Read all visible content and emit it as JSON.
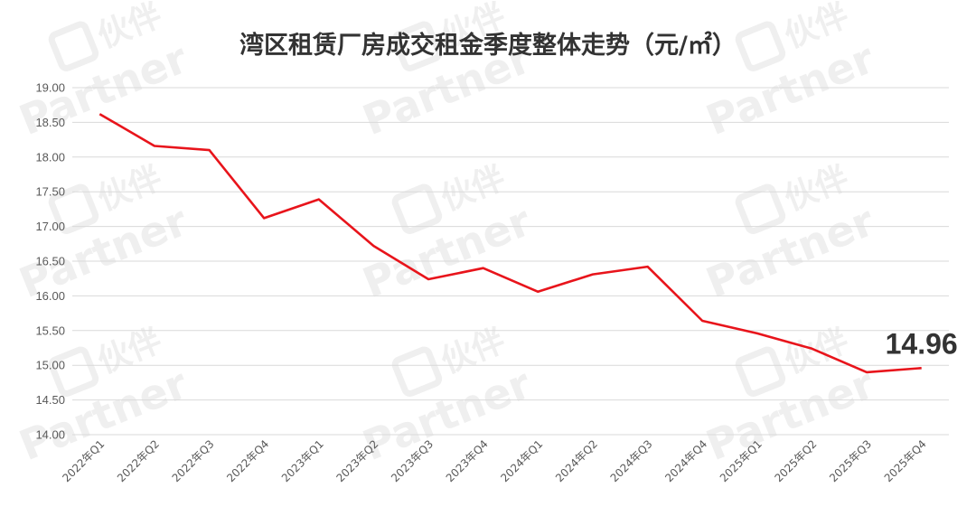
{
  "chart_data": {
    "type": "line",
    "title": "湾区租赁厂房成交租金季度整体走势（元/㎡）",
    "xlabel": "",
    "ylabel": "",
    "categories": [
      "2022年Q1",
      "2022年Q2",
      "2022年Q3",
      "2022年Q4",
      "2023年Q1",
      "2023年Q2",
      "2023年Q3",
      "2023年Q4",
      "2024年Q1",
      "2024年Q2",
      "2024年Q3",
      "2024年Q4",
      "2025年Q1",
      "2025年Q2",
      "2025年Q3",
      "2025年Q4"
    ],
    "series": [
      {
        "values": [
          18.62,
          18.16,
          18.1,
          17.12,
          17.39,
          16.72,
          16.24,
          16.4,
          16.06,
          16.31,
          16.42,
          15.64,
          15.46,
          15.24,
          14.9,
          14.96
        ],
        "color": "#e8141b"
      }
    ],
    "ylim": [
      14.0,
      19.0
    ],
    "yticks": [
      "14.00",
      "14.50",
      "15.00",
      "15.50",
      "16.00",
      "16.50",
      "17.00",
      "17.50",
      "18.00",
      "18.50",
      "19.00"
    ],
    "grid": true,
    "legend": "none",
    "annotation": "14.96"
  },
  "watermark": {
    "brand_text": "伙伴",
    "latin_text": "Partner",
    "color": "#efefef"
  }
}
